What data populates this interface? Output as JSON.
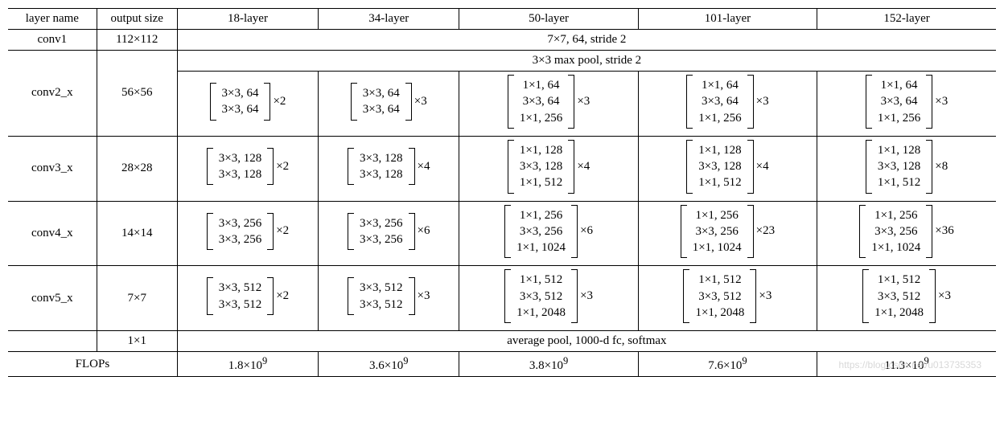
{
  "header": {
    "layer_name": "layer name",
    "output_size": "output size",
    "c18": "18-layer",
    "c34": "34-layer",
    "c50": "50-layer",
    "c101": "101-layer",
    "c152": "152-layer"
  },
  "conv1": {
    "name": "conv1",
    "out": "112×112",
    "desc": "7×7, 64, stride 2"
  },
  "pool": "3×3 max pool, stride 2",
  "conv2": {
    "name": "conv2_x",
    "out": "56×56",
    "b18": {
      "lines": [
        "3×3, 64",
        "3×3, 64"
      ],
      "mult": "×2"
    },
    "b34": {
      "lines": [
        "3×3, 64",
        "3×3, 64"
      ],
      "mult": "×3"
    },
    "b50": {
      "lines": [
        "1×1, 64",
        "3×3, 64",
        "1×1, 256"
      ],
      "mult": "×3"
    },
    "b101": {
      "lines": [
        "1×1, 64",
        "3×3, 64",
        "1×1, 256"
      ],
      "mult": "×3"
    },
    "b152": {
      "lines": [
        "1×1, 64",
        "3×3, 64",
        "1×1, 256"
      ],
      "mult": "×3"
    }
  },
  "conv3": {
    "name": "conv3_x",
    "out": "28×28",
    "b18": {
      "lines": [
        "3×3, 128",
        "3×3, 128"
      ],
      "mult": "×2"
    },
    "b34": {
      "lines": [
        "3×3, 128",
        "3×3, 128"
      ],
      "mult": "×4"
    },
    "b50": {
      "lines": [
        "1×1, 128",
        "3×3, 128",
        "1×1, 512"
      ],
      "mult": "×4"
    },
    "b101": {
      "lines": [
        "1×1, 128",
        "3×3, 128",
        "1×1, 512"
      ],
      "mult": "×4"
    },
    "b152": {
      "lines": [
        "1×1, 128",
        "3×3, 128",
        "1×1, 512"
      ],
      "mult": "×8"
    }
  },
  "conv4": {
    "name": "conv4_x",
    "out": "14×14",
    "b18": {
      "lines": [
        "3×3, 256",
        "3×3, 256"
      ],
      "mult": "×2"
    },
    "b34": {
      "lines": [
        "3×3, 256",
        "3×3, 256"
      ],
      "mult": "×6"
    },
    "b50": {
      "lines": [
        "1×1, 256",
        "3×3, 256",
        "1×1, 1024"
      ],
      "mult": "×6"
    },
    "b101": {
      "lines": [
        "1×1, 256",
        "3×3, 256",
        "1×1, 1024"
      ],
      "mult": "×23"
    },
    "b152": {
      "lines": [
        "1×1, 256",
        "3×3, 256",
        "1×1, 1024"
      ],
      "mult": "×36"
    }
  },
  "conv5": {
    "name": "conv5_x",
    "out": "7×7",
    "b18": {
      "lines": [
        "3×3, 512",
        "3×3, 512"
      ],
      "mult": "×2"
    },
    "b34": {
      "lines": [
        "3×3, 512",
        "3×3, 512"
      ],
      "mult": "×3"
    },
    "b50": {
      "lines": [
        "1×1, 512",
        "3×3, 512",
        "1×1, 2048"
      ],
      "mult": "×3"
    },
    "b101": {
      "lines": [
        "1×1, 512",
        "3×3, 512",
        "1×1, 2048"
      ],
      "mult": "×3"
    },
    "b152": {
      "lines": [
        "1×1, 512",
        "3×3, 512",
        "1×1, 2048"
      ],
      "mult": "×3"
    }
  },
  "final": {
    "out": "1×1",
    "desc": "average pool, 1000-d fc, softmax"
  },
  "flops": {
    "label": "FLOPs",
    "c18_m": "1.8×10",
    "c18_e": "9",
    "c34_m": "3.6×10",
    "c34_e": "9",
    "c50_m": "3.8×10",
    "c50_e": "9",
    "c101_m": "7.6×10",
    "c101_e": "9",
    "c152_m": "11.3×10",
    "c152_e": "9"
  },
  "watermark": "https://blog.csdn.net/u013735353"
}
